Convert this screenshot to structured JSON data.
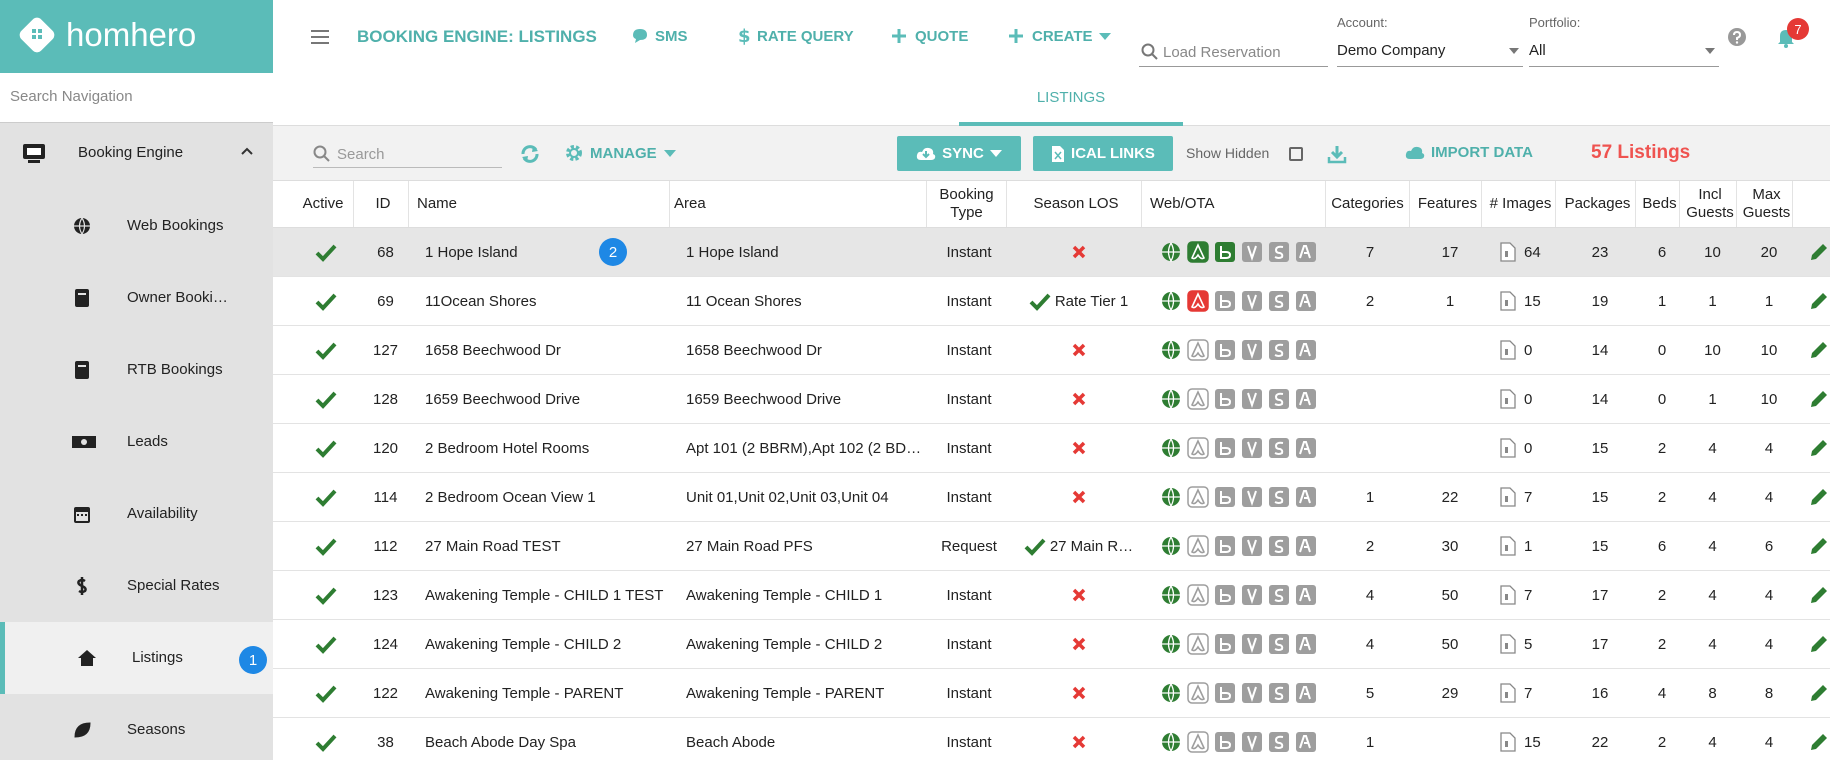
{
  "brand": "homhero",
  "sidebar": {
    "search_placeholder": "Search Navigation",
    "section": "Booking Engine",
    "items": [
      {
        "label": "Web Bookings"
      },
      {
        "label": "Owner Booki…"
      },
      {
        "label": "RTB Bookings"
      },
      {
        "label": "Leads"
      },
      {
        "label": "Availability"
      },
      {
        "label": "Special Rates"
      },
      {
        "label": "Listings",
        "active": true,
        "badge": "1"
      },
      {
        "label": "Seasons"
      }
    ]
  },
  "topbar": {
    "title": "BOOKING ENGINE: LISTINGS",
    "actions": [
      "SMS",
      "RATE QUERY",
      "QUOTE",
      "CREATE"
    ],
    "load_placeholder": "Load Reservation",
    "account_label": "Account:",
    "account_value": "Demo Company",
    "portfolio_label": "Portfolio:",
    "portfolio_value": "All",
    "notifications": "7"
  },
  "tab": "LISTINGS",
  "toolbar": {
    "search_placeholder": "Search",
    "manage": "MANAGE",
    "sync": "SYNC",
    "ical": "ICAL LINKS",
    "show_hidden": "Show Hidden",
    "import": "IMPORT DATA",
    "count": "57 Listings"
  },
  "table": {
    "headers": [
      "Active",
      "ID",
      "Name",
      "Area",
      "Booking Type",
      "Season LOS",
      "Web/OTA",
      "Categories",
      "Features",
      "# Images",
      "Packages",
      "Beds",
      "Incl Guests",
      "Max Guests"
    ],
    "rows": [
      {
        "active": true,
        "id": 68,
        "name": "1 Hope Island",
        "badge": "2",
        "selected": true,
        "area": "1 Hope Island",
        "booking_type": "Instant",
        "season_los": null,
        "ota": [
          "on",
          "green",
          "green",
          "off",
          "off",
          "off"
        ],
        "categories": 7,
        "features": 17,
        "images": 64,
        "packages": 23,
        "beds": 6,
        "incl_guests": 10,
        "max_guests": 20
      },
      {
        "active": true,
        "id": 69,
        "name": "11Ocean Shores",
        "area": "11 Ocean Shores",
        "booking_type": "Instant",
        "season_los": "Rate Tier 1",
        "ota": [
          "on",
          "red",
          "off",
          "off",
          "off",
          "off"
        ],
        "categories": 2,
        "features": 1,
        "images": 15,
        "packages": 19,
        "beds": 1,
        "incl_guests": 1,
        "max_guests": 1
      },
      {
        "active": true,
        "id": 127,
        "name": "1658 Beechwood Dr",
        "area": "1658 Beechwood Dr",
        "booking_type": "Instant",
        "season_los": null,
        "ota": [
          "on",
          "off",
          "off",
          "off",
          "off",
          "off"
        ],
        "categories": null,
        "features": null,
        "images": 0,
        "packages": 14,
        "beds": 0,
        "incl_guests": 10,
        "max_guests": 10
      },
      {
        "active": true,
        "id": 128,
        "name": "1659 Beechwood Drive",
        "area": "1659 Beechwood Drive",
        "booking_type": "Instant",
        "season_los": null,
        "ota": [
          "on",
          "off",
          "off",
          "off",
          "off",
          "off"
        ],
        "categories": null,
        "features": null,
        "images": 0,
        "packages": 14,
        "beds": 0,
        "incl_guests": 1,
        "max_guests": 10
      },
      {
        "active": true,
        "id": 120,
        "name": "2 Bedroom Hotel Rooms",
        "area": "Apt 101 (2 BBRM),Apt 102 (2 BDR…",
        "booking_type": "Instant",
        "season_los": null,
        "ota": [
          "on",
          "off",
          "off",
          "off",
          "off",
          "off"
        ],
        "categories": null,
        "features": null,
        "images": 0,
        "packages": 15,
        "beds": 2,
        "incl_guests": 4,
        "max_guests": 4
      },
      {
        "active": true,
        "id": 114,
        "name": "2 Bedroom Ocean View 1",
        "area": "Unit 01,Unit 02,Unit 03,Unit 04",
        "booking_type": "Instant",
        "season_los": null,
        "ota": [
          "on",
          "off",
          "off",
          "off",
          "off",
          "off"
        ],
        "categories": 1,
        "features": 22,
        "images": 7,
        "packages": 15,
        "beds": 2,
        "incl_guests": 4,
        "max_guests": 4
      },
      {
        "active": true,
        "id": 112,
        "name": "27 Main Road TEST",
        "area": "27 Main Road PFS",
        "booking_type": "Request",
        "season_los": "27 Main R…",
        "ota": [
          "on",
          "off",
          "off",
          "off",
          "off",
          "off"
        ],
        "categories": 2,
        "features": 30,
        "images": 1,
        "packages": 15,
        "beds": 6,
        "incl_guests": 4,
        "max_guests": 6
      },
      {
        "active": true,
        "id": 123,
        "name": "Awakening Temple - CHILD 1 TEST",
        "area": "Awakening Temple - CHILD 1",
        "booking_type": "Instant",
        "season_los": null,
        "ota": [
          "on",
          "off",
          "off",
          "off",
          "off",
          "off"
        ],
        "categories": 4,
        "features": 50,
        "images": 7,
        "packages": 17,
        "beds": 2,
        "incl_guests": 4,
        "max_guests": 4
      },
      {
        "active": true,
        "id": 124,
        "name": "Awakening Temple - CHILD 2",
        "area": "Awakening Temple - CHILD 2",
        "booking_type": "Instant",
        "season_los": null,
        "ota": [
          "on",
          "off",
          "off",
          "off",
          "off",
          "off"
        ],
        "categories": 4,
        "features": 50,
        "images": 5,
        "packages": 17,
        "beds": 2,
        "incl_guests": 4,
        "max_guests": 4
      },
      {
        "active": true,
        "id": 122,
        "name": "Awakening Temple - PARENT",
        "area": "Awakening Temple - PARENT",
        "booking_type": "Instant",
        "season_los": null,
        "ota": [
          "on",
          "off",
          "off",
          "off",
          "off",
          "off"
        ],
        "categories": 5,
        "features": 29,
        "images": 7,
        "packages": 16,
        "beds": 4,
        "incl_guests": 8,
        "max_guests": 8
      },
      {
        "active": true,
        "id": 38,
        "name": "Beach Abode Day Spa",
        "area": "Beach Abode",
        "booking_type": "Instant",
        "season_los": null,
        "ota": [
          "on",
          "off",
          "off",
          "off",
          "off",
          "off"
        ],
        "categories": 1,
        "features": null,
        "images": 15,
        "packages": 22,
        "beds": 2,
        "incl_guests": 4,
        "max_guests": 4
      }
    ]
  }
}
